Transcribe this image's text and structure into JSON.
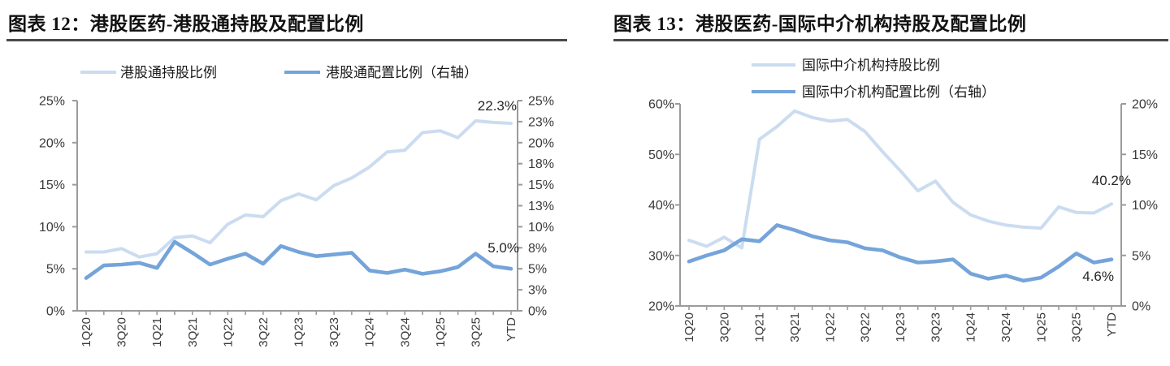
{
  "chart_data": [
    {
      "type": "line",
      "figure_label": "图表 12",
      "title": "图表 12：港股医药-港股通持股及配置比例",
      "categories": [
        "1Q20",
        "2Q20",
        "3Q20",
        "4Q20",
        "1Q21",
        "2Q21",
        "3Q21",
        "4Q21",
        "1Q22",
        "2Q22",
        "3Q22",
        "4Q22",
        "1Q23",
        "2Q23",
        "3Q23",
        "4Q23",
        "1Q24",
        "2Q24",
        "3Q24",
        "4Q24",
        "1Q25",
        "2Q25",
        "3Q25",
        "4Q25",
        "YTD"
      ],
      "x_tick_labels_shown": [
        "1Q20",
        "3Q20",
        "1Q21",
        "3Q21",
        "1Q22",
        "3Q22",
        "1Q23",
        "3Q23",
        "1Q24",
        "3Q24",
        "1Q25",
        "3Q25",
        "YTD"
      ],
      "series": [
        {
          "name": "港股通持股比例",
          "axis": "left",
          "color": "#cbdcf0",
          "values": [
            7.0,
            7.0,
            7.4,
            6.4,
            6.8,
            8.7,
            8.9,
            8.1,
            10.3,
            11.4,
            11.2,
            13.1,
            13.9,
            13.2,
            14.9,
            15.8,
            17.1,
            18.9,
            19.1,
            21.2,
            21.4,
            20.6,
            22.6,
            22.4,
            22.3
          ]
        },
        {
          "name": "港股通配置比例（右轴）",
          "axis": "right",
          "color": "#74a4d9",
          "values": [
            3.9,
            5.4,
            5.5,
            5.7,
            5.1,
            8.2,
            6.9,
            5.5,
            6.2,
            6.8,
            5.6,
            7.7,
            7.0,
            6.5,
            6.7,
            6.9,
            4.8,
            4.5,
            4.9,
            4.4,
            4.7,
            5.2,
            6.8,
            5.3,
            5.0
          ]
        }
      ],
      "left_axis": {
        "min": 0,
        "max": 25,
        "tick_labels": [
          "0%",
          "5%",
          "10%",
          "15%",
          "20%",
          "25%"
        ]
      },
      "right_axis": {
        "min": 0,
        "max": 25,
        "tick_labels": [
          "0%",
          "3%",
          "5%",
          "8%",
          "10%",
          "13%",
          "15%",
          "18%",
          "20%",
          "23%",
          "25%"
        ]
      },
      "annotations": [
        {
          "text": "22.3%",
          "series": 0,
          "category": "YTD",
          "value": 22.3
        },
        {
          "text": "5.0%",
          "series": 1,
          "category": "YTD",
          "value": 5.0
        }
      ],
      "grid": false,
      "legend_position": "top"
    },
    {
      "type": "line",
      "figure_label": "图表 13",
      "title": "图表 13：港股医药-国际中介机构持股及配置比例",
      "categories": [
        "1Q20",
        "2Q20",
        "3Q20",
        "4Q20",
        "1Q21",
        "2Q21",
        "3Q21",
        "4Q21",
        "1Q22",
        "2Q22",
        "3Q22",
        "4Q22",
        "1Q23",
        "2Q23",
        "3Q23",
        "4Q23",
        "1Q24",
        "2Q24",
        "3Q24",
        "4Q24",
        "1Q25",
        "2Q25",
        "3Q25",
        "4Q25",
        "YTD"
      ],
      "x_tick_labels_shown": [
        "1Q20",
        "3Q20",
        "1Q21",
        "3Q21",
        "1Q22",
        "3Q22",
        "1Q23",
        "3Q23",
        "1Q24",
        "3Q24",
        "1Q25",
        "3Q25",
        "YTD"
      ],
      "series": [
        {
          "name": "国际中介机构持股比例",
          "axis": "left",
          "color": "#cbdcf0",
          "values": [
            33.0,
            31.8,
            33.6,
            31.5,
            53.0,
            55.5,
            58.6,
            57.3,
            56.6,
            56.9,
            54.5,
            50.5,
            46.8,
            42.8,
            44.7,
            40.5,
            38.0,
            36.8,
            36.0,
            35.6,
            35.4,
            39.6,
            38.5,
            38.4,
            40.2
          ]
        },
        {
          "name": "国际中介机构配置比例（右轴）",
          "axis": "right",
          "color": "#74a4d9",
          "values": [
            4.4,
            5.0,
            5.5,
            6.6,
            6.4,
            8.0,
            7.5,
            6.9,
            6.5,
            6.3,
            5.7,
            5.5,
            4.8,
            4.3,
            4.4,
            4.6,
            3.2,
            2.7,
            3.0,
            2.5,
            2.8,
            3.9,
            5.2,
            4.3,
            4.6
          ]
        }
      ],
      "left_axis": {
        "min": 20,
        "max": 60,
        "tick_labels": [
          "20%",
          "30%",
          "40%",
          "50%",
          "60%"
        ]
      },
      "right_axis": {
        "min": 0,
        "max": 20,
        "tick_labels": [
          "0%",
          "5%",
          "10%",
          "15%",
          "20%"
        ]
      },
      "annotations": [
        {
          "text": "40.2%",
          "series": 0,
          "category": "YTD",
          "value": 40.2
        },
        {
          "text": "4.6%",
          "series": 1,
          "category": "YTD",
          "value": 4.6
        }
      ],
      "grid": false,
      "legend_position": "top"
    }
  ]
}
